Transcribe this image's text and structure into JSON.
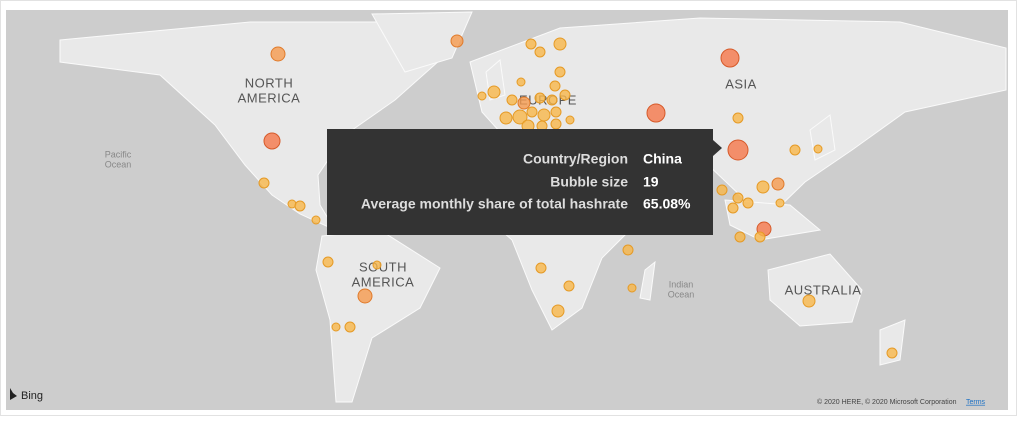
{
  "map": {
    "labels": {
      "north_america": [
        "NORTH",
        "AMERICA"
      ],
      "europe": "EUROPE",
      "asia": "ASIA",
      "south_america": [
        "SOUTH",
        "AMERICA"
      ],
      "australia": "AUSTRALIA",
      "pacific_ocean": [
        "Pacific",
        "Ocean"
      ],
      "indian_ocean": [
        "Indian",
        "Ocean"
      ]
    }
  },
  "tooltip": {
    "rows": [
      {
        "label": "Country/Region",
        "value": "China"
      },
      {
        "label": "Bubble size",
        "value": 19
      },
      {
        "label": "Average monthly share of total hashrate",
        "value": "65.08%"
      }
    ]
  },
  "footer": {
    "brand": "Bing",
    "copyright": "© 2020 HERE, © 2020 Microsoft Corporation",
    "terms": "Terms"
  }
}
